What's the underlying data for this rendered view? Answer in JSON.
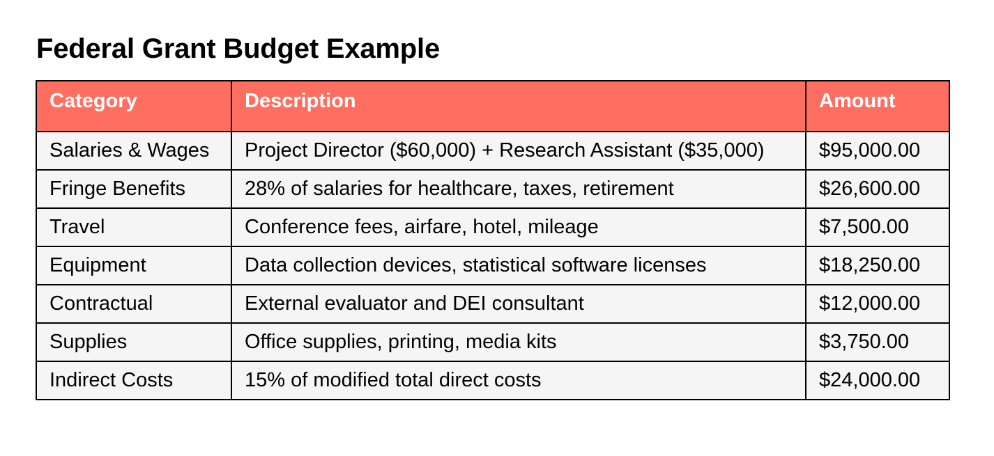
{
  "title": "Federal Grant Budget Example",
  "table": {
    "headers": [
      "Category",
      "Description",
      "Amount"
    ],
    "rows": [
      [
        "Salaries & Wages",
        "Project Director ($60,000) + Research Assistant ($35,000)",
        "$95,000.00"
      ],
      [
        "Fringe Benefits",
        "28% of salaries for healthcare, taxes, retirement",
        "$26,600.00"
      ],
      [
        "Travel",
        "Conference fees, airfare, hotel, mileage",
        "$7,500.00"
      ],
      [
        "Equipment",
        "Data collection devices, statistical software licenses",
        "$18,250.00"
      ],
      [
        "Contractual",
        "External evaluator and DEI consultant",
        "$12,000.00"
      ],
      [
        "Supplies",
        "Office supplies, printing, media kits",
        "$3,750.00"
      ],
      [
        "Indirect Costs",
        "15% of modified total direct costs",
        "$24,000.00"
      ]
    ]
  },
  "colors": {
    "header_bg": "#ff6f61",
    "header_text": "#ffffff",
    "row_bg": "#f5f5f5",
    "border": "#000000"
  }
}
